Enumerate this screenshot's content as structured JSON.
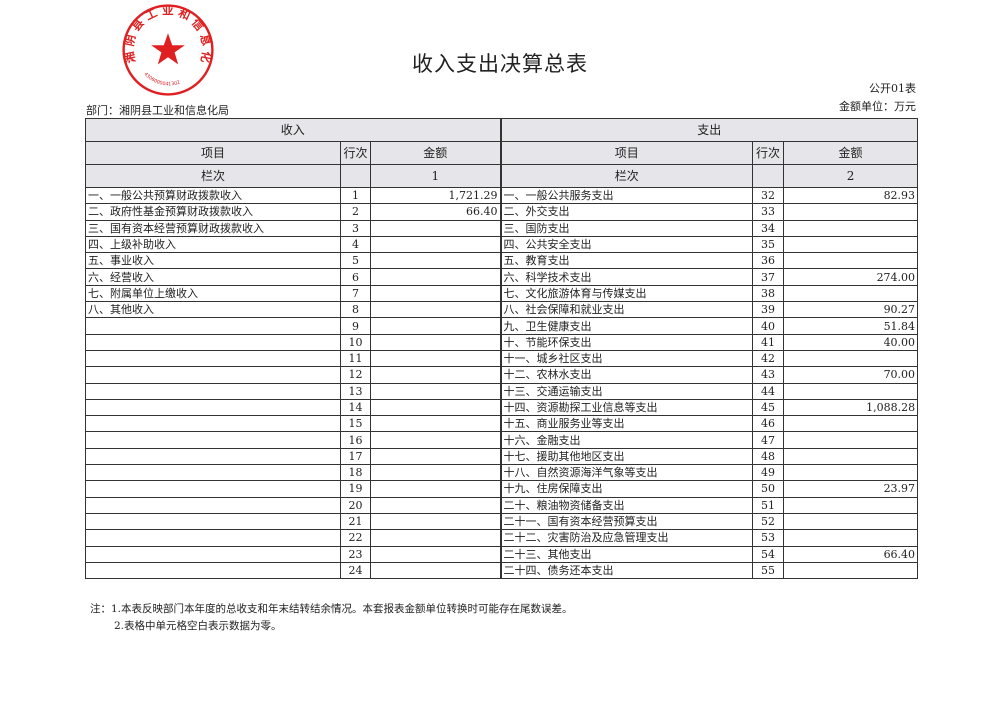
{
  "title": "收入支出决算总表",
  "form_no": "公开01表",
  "department": "部门：湘阴县工业和信息化局",
  "unit": "金额单位：万元",
  "stamp": {
    "text": "湘阴县工业和信息化局",
    "code": "4306000041302",
    "color": "#e02020"
  },
  "header": {
    "income": "收入",
    "expense": "支出",
    "item": "项目",
    "row_no": "行次",
    "amount": "金额",
    "column": "栏次",
    "income_col": "1",
    "expense_col": "2"
  },
  "rows": [
    {
      "in_item": "一、一般公共预算财政拨款收入",
      "in_no": "1",
      "in_amt": "1,721.29",
      "ex_item": "一、一般公共服务支出",
      "ex_no": "32",
      "ex_amt": "82.93"
    },
    {
      "in_item": "二、政府性基金预算财政拨款收入",
      "in_no": "2",
      "in_amt": "66.40",
      "ex_item": "二、外交支出",
      "ex_no": "33",
      "ex_amt": ""
    },
    {
      "in_item": "三、国有资本经营预算财政拨款收入",
      "in_no": "3",
      "in_amt": "",
      "ex_item": "三、国防支出",
      "ex_no": "34",
      "ex_amt": ""
    },
    {
      "in_item": "四、上级补助收入",
      "in_no": "4",
      "in_amt": "",
      "ex_item": "四、公共安全支出",
      "ex_no": "35",
      "ex_amt": ""
    },
    {
      "in_item": "五、事业收入",
      "in_no": "5",
      "in_amt": "",
      "ex_item": "五、教育支出",
      "ex_no": "36",
      "ex_amt": ""
    },
    {
      "in_item": "六、经营收入",
      "in_no": "6",
      "in_amt": "",
      "ex_item": "六、科学技术支出",
      "ex_no": "37",
      "ex_amt": "274.00"
    },
    {
      "in_item": "七、附属单位上缴收入",
      "in_no": "7",
      "in_amt": "",
      "ex_item": "七、文化旅游体育与传媒支出",
      "ex_no": "38",
      "ex_amt": ""
    },
    {
      "in_item": "八、其他收入",
      "in_no": "8",
      "in_amt": "",
      "ex_item": "八、社会保障和就业支出",
      "ex_no": "39",
      "ex_amt": "90.27"
    },
    {
      "in_item": "",
      "in_no": "9",
      "in_amt": "",
      "ex_item": "九、卫生健康支出",
      "ex_no": "40",
      "ex_amt": "51.84"
    },
    {
      "in_item": "",
      "in_no": "10",
      "in_amt": "",
      "ex_item": "十、节能环保支出",
      "ex_no": "41",
      "ex_amt": "40.00"
    },
    {
      "in_item": "",
      "in_no": "11",
      "in_amt": "",
      "ex_item": "十一、城乡社区支出",
      "ex_no": "42",
      "ex_amt": ""
    },
    {
      "in_item": "",
      "in_no": "12",
      "in_amt": "",
      "ex_item": "十二、农林水支出",
      "ex_no": "43",
      "ex_amt": "70.00"
    },
    {
      "in_item": "",
      "in_no": "13",
      "in_amt": "",
      "ex_item": "十三、交通运输支出",
      "ex_no": "44",
      "ex_amt": ""
    },
    {
      "in_item": "",
      "in_no": "14",
      "in_amt": "",
      "ex_item": "十四、资源勘探工业信息等支出",
      "ex_no": "45",
      "ex_amt": "1,088.28"
    },
    {
      "in_item": "",
      "in_no": "15",
      "in_amt": "",
      "ex_item": "十五、商业服务业等支出",
      "ex_no": "46",
      "ex_amt": ""
    },
    {
      "in_item": "",
      "in_no": "16",
      "in_amt": "",
      "ex_item": "十六、金融支出",
      "ex_no": "47",
      "ex_amt": ""
    },
    {
      "in_item": "",
      "in_no": "17",
      "in_amt": "",
      "ex_item": "十七、援助其他地区支出",
      "ex_no": "48",
      "ex_amt": ""
    },
    {
      "in_item": "",
      "in_no": "18",
      "in_amt": "",
      "ex_item": "十八、自然资源海洋气象等支出",
      "ex_no": "49",
      "ex_amt": ""
    },
    {
      "in_item": "",
      "in_no": "19",
      "in_amt": "",
      "ex_item": "十九、住房保障支出",
      "ex_no": "50",
      "ex_amt": "23.97"
    },
    {
      "in_item": "",
      "in_no": "20",
      "in_amt": "",
      "ex_item": "二十、粮油物资储备支出",
      "ex_no": "51",
      "ex_amt": ""
    },
    {
      "in_item": "",
      "in_no": "21",
      "in_amt": "",
      "ex_item": "二十一、国有资本经营预算支出",
      "ex_no": "52",
      "ex_amt": ""
    },
    {
      "in_item": "",
      "in_no": "22",
      "in_amt": "",
      "ex_item": "二十二、灾害防治及应急管理支出",
      "ex_no": "53",
      "ex_amt": ""
    },
    {
      "in_item": "",
      "in_no": "23",
      "in_amt": "",
      "ex_item": "二十三、其他支出",
      "ex_no": "54",
      "ex_amt": "66.40"
    },
    {
      "in_item": "",
      "in_no": "24",
      "in_amt": "",
      "ex_item": "二十四、债务还本支出",
      "ex_no": "55",
      "ex_amt": ""
    }
  ],
  "notes": [
    "注：1.本表反映部门本年度的总收支和年末结转结余情况。本套报表金额单位转换时可能存在尾数误差。",
    "2.表格中单元格空白表示数据为零。"
  ]
}
